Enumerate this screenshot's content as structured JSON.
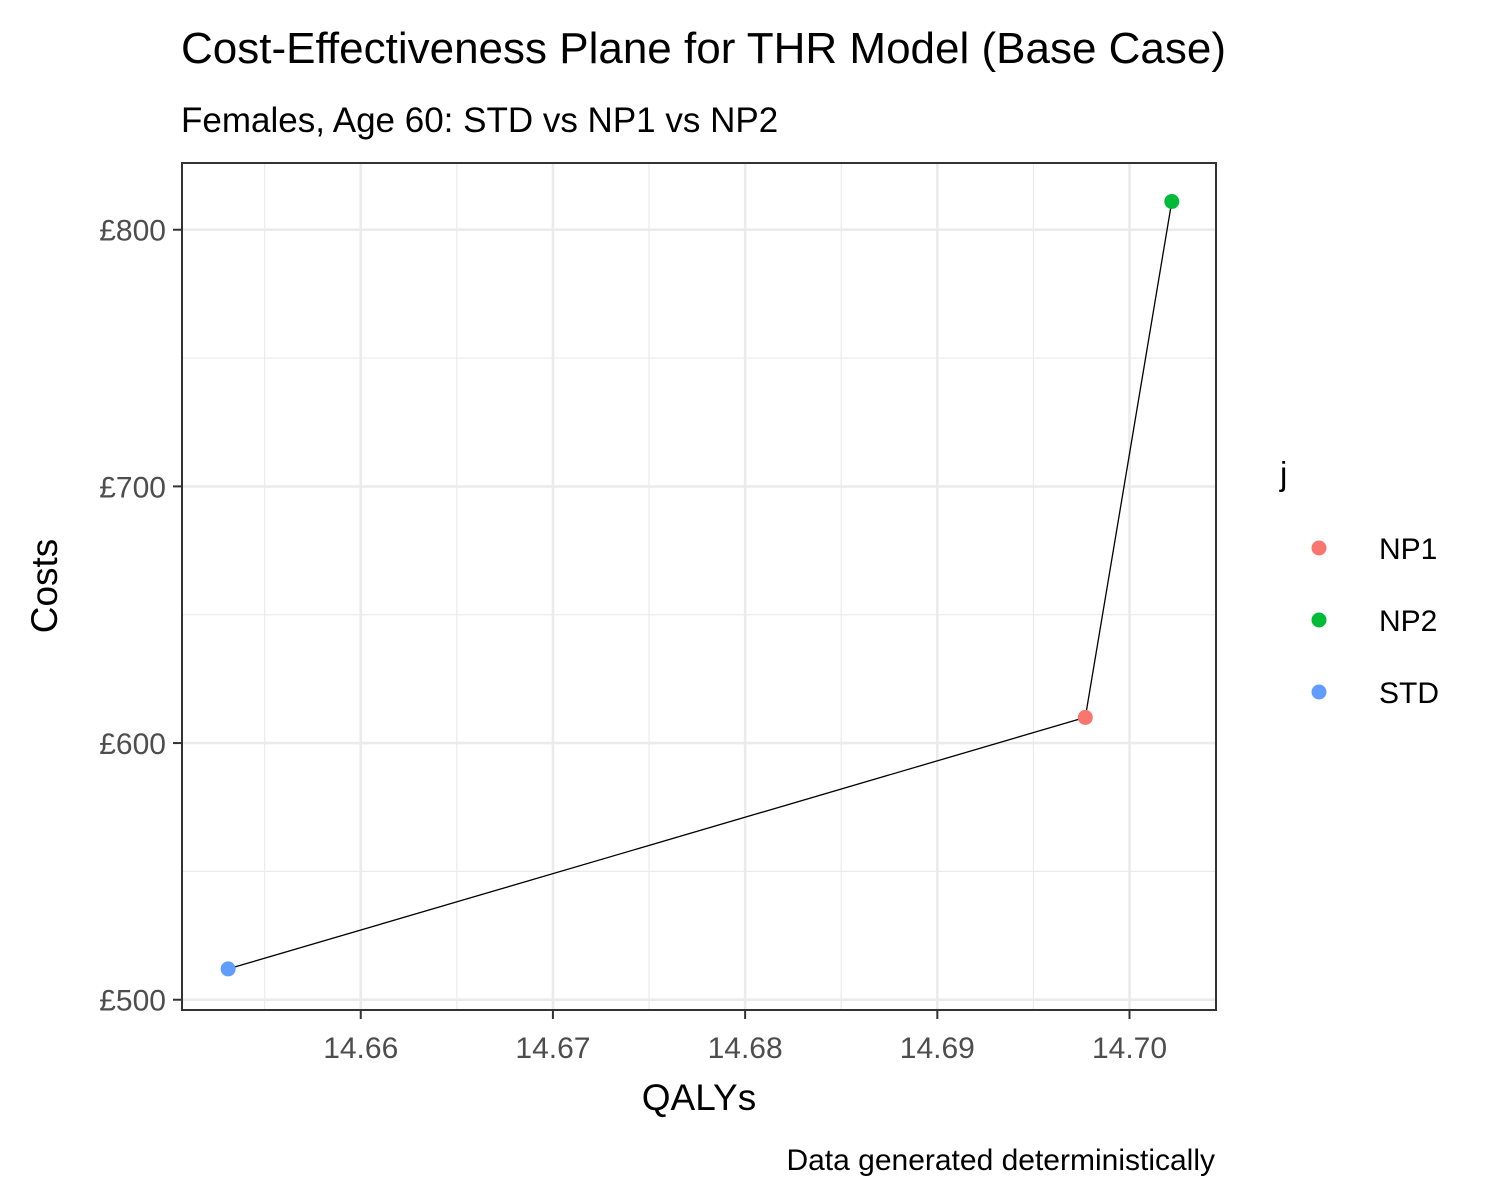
{
  "chart_data": {
    "type": "scatter",
    "title": "Cost-Effectiveness Plane for THR Model (Base Case)",
    "subtitle": "Females, Age 60: STD vs NP1 vs NP2",
    "xlabel": "QALYs",
    "ylabel": "Costs",
    "caption": "Data generated deterministically",
    "xlim": [
      14.6507,
      14.7045
    ],
    "ylim": [
      496,
      826
    ],
    "x_major_ticks": [
      14.66,
      14.67,
      14.68,
      14.69,
      14.7
    ],
    "x_tick_labels": [
      "14.66",
      "14.67",
      "14.68",
      "14.69",
      "14.70"
    ],
    "x_minor_ticks": [
      14.655,
      14.665,
      14.675,
      14.685,
      14.695
    ],
    "y_major_ticks": [
      500,
      600,
      700,
      800
    ],
    "y_tick_labels": [
      "£500",
      "£600",
      "£700",
      "£800"
    ],
    "y_minor_ticks": [
      550,
      650,
      750
    ],
    "grid": true,
    "legend": {
      "title": "j",
      "position": "right",
      "entries": [
        {
          "name": "NP1",
          "color": "#F8766D"
        },
        {
          "name": "NP2",
          "color": "#00BA38"
        },
        {
          "name": "STD",
          "color": "#619CFF"
        }
      ]
    },
    "points": [
      {
        "name": "STD",
        "x": 14.6531,
        "y": 512,
        "color": "#619CFF"
      },
      {
        "name": "NP1",
        "x": 14.6977,
        "y": 610,
        "color": "#F8766D"
      },
      {
        "name": "NP2",
        "x": 14.7022,
        "y": 811,
        "color": "#00BA38"
      }
    ],
    "frontier": [
      "STD",
      "NP1",
      "NP2"
    ],
    "frontier_color": "#000000"
  }
}
